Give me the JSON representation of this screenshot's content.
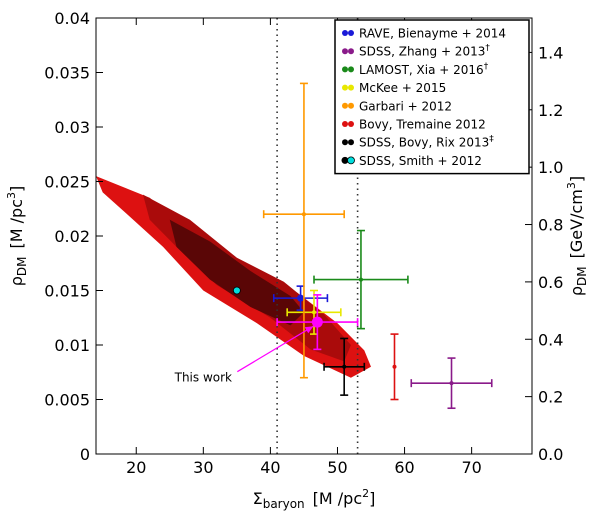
{
  "chart_data": {
    "type": "scatter",
    "title": "",
    "xlabel": {
      "main": "Σ",
      "sub": "baryon",
      "unit": "[M  /pc",
      "sup": "2",
      "close": "]"
    },
    "ylabel_left": {
      "main": "ρ",
      "sub": "DM",
      "unit": "[M  /pc",
      "sup": "3",
      "close": "]"
    },
    "ylabel_right": {
      "main": "ρ",
      "sub": "DM",
      "unit": "[GeV/cm",
      "sup": "3",
      "close": "]"
    },
    "xlim": [
      14,
      79
    ],
    "ylim": [
      0,
      0.04
    ],
    "ylim_right": [
      0,
      1.52
    ],
    "xticks": [
      20,
      30,
      40,
      50,
      60,
      70
    ],
    "yticks": [
      0,
      0.005,
      0.01,
      0.015,
      0.02,
      0.025,
      0.03,
      0.035,
      0.04
    ],
    "ytick_labels": [
      "0",
      "0.005",
      "0.01",
      "0.015",
      "0.02",
      "0.025",
      "0.03",
      "0.035",
      "0.04"
    ],
    "yticks_right": [
      0.0,
      0.2,
      0.4,
      0.6,
      0.8,
      1.0,
      1.2,
      1.4
    ],
    "ytick_right_labels": [
      "0.0",
      "0.2",
      "0.4",
      "0.6",
      "0.8",
      "1.0",
      "1.2",
      "1.4"
    ],
    "vlines": [
      41,
      53
    ],
    "annotation": {
      "text": "This work",
      "x": 47,
      "y": 0.012,
      "text_x": 30,
      "text_y": 0.007
    },
    "band": {
      "name": "Bovy, Tremaine 2012",
      "color_outer": "#dd1111",
      "color_mid": "#aa0b0b",
      "color_inner": "#5a0606",
      "outer": [
        [
          14,
          0.0255
        ],
        [
          22,
          0.0235
        ],
        [
          30,
          0.0195
        ],
        [
          38,
          0.0165
        ],
        [
          44,
          0.0148
        ],
        [
          50,
          0.012
        ],
        [
          54,
          0.0095
        ],
        [
          55,
          0.008
        ],
        [
          52,
          0.007
        ],
        [
          45,
          0.009
        ],
        [
          38,
          0.012
        ],
        [
          30,
          0.015
        ],
        [
          24,
          0.019
        ],
        [
          19,
          0.0218
        ],
        [
          15,
          0.024
        ]
      ],
      "mid": [
        [
          21,
          0.0238
        ],
        [
          28,
          0.0215
        ],
        [
          35,
          0.018
        ],
        [
          42,
          0.0158
        ],
        [
          48,
          0.0128
        ],
        [
          52,
          0.01
        ],
        [
          51,
          0.0085
        ],
        [
          46,
          0.0096
        ],
        [
          40,
          0.0125
        ],
        [
          32,
          0.0155
        ],
        [
          26,
          0.019
        ],
        [
          22,
          0.0215
        ]
      ],
      "inner": [
        [
          25,
          0.0215
        ],
        [
          31,
          0.0195
        ],
        [
          37,
          0.0168
        ],
        [
          43,
          0.0145
        ],
        [
          45,
          0.013
        ],
        [
          43,
          0.0118
        ],
        [
          37,
          0.0135
        ],
        [
          31,
          0.016
        ],
        [
          26,
          0.019
        ]
      ]
    },
    "series": [
      {
        "name": "RAVE, Bienayme + 2014",
        "color": "#1a1ad8",
        "x": 44.5,
        "y": 0.0143,
        "xerr": [
          4,
          4
        ],
        "yerr": [
          0.0011,
          0.0011
        ],
        "marker": "circle"
      },
      {
        "name": "SDSS, Zhang + 2013",
        "sup": "†",
        "color": "#8a1a8a",
        "x": 67,
        "y": 0.0065,
        "xerr": [
          6,
          6
        ],
        "yerr": [
          0.0023,
          0.0023
        ],
        "marker": "dot"
      },
      {
        "name": "LAMOST, Xia + 2016",
        "sup": "†",
        "color": "#1a8a1a",
        "x": 53.5,
        "y": 0.016,
        "xerr": [
          7,
          7
        ],
        "yerr": [
          0.0045,
          0.0045
        ],
        "marker": "dot"
      },
      {
        "name": "McKee + 2015",
        "color": "#e8e800",
        "x": 46.5,
        "y": 0.013,
        "xerr": [
          4,
          4
        ],
        "yerr": [
          0.002,
          0.002
        ],
        "marker": "dot"
      },
      {
        "name": "Garbari + 2012",
        "color": "#ff9900",
        "x": 45,
        "y": 0.022,
        "xerr": [
          6,
          6
        ],
        "yerr": [
          0.015,
          0.012
        ],
        "marker": "dot"
      },
      {
        "name": "SDSS, Bovy, Rix 2013",
        "sup": "‡",
        "color": "#000000",
        "x": 51,
        "y": 0.008,
        "xerr": [
          3,
          3
        ],
        "yerr": [
          0.0026,
          0.0026
        ],
        "marker": "dot"
      },
      {
        "name": "SDSS, Smith + 2012",
        "color": "#00dddd",
        "edge": "#000000",
        "x": 35,
        "y": 0.015,
        "xerr": [
          0,
          0
        ],
        "yerr": [
          0,
          0
        ],
        "marker": "circle"
      },
      {
        "name": "This work",
        "color": "#ff00ff",
        "x": 47,
        "y": 0.0121,
        "xerr": [
          6,
          6
        ],
        "yerr": [
          0.0025,
          0.0025
        ],
        "marker": "bigcircle"
      }
    ],
    "extra_points": [
      {
        "color": "#dd1111",
        "x": 58.5,
        "y": 0.008,
        "xerr": [
          0,
          0
        ],
        "yerr": [
          0.003,
          0.003
        ]
      }
    ],
    "legend": {
      "placement": "top-right",
      "entries": [
        {
          "label": "RAVE, Bienayme + 2014",
          "sup": "",
          "color": "#1a1ad8"
        },
        {
          "label": "SDSS, Zhang + 2013",
          "sup": "†",
          "color": "#8a1a8a"
        },
        {
          "label": "LAMOST, Xia + 2016",
          "sup": "†",
          "color": "#1a8a1a"
        },
        {
          "label": "McKee + 2015",
          "sup": "",
          "color": "#e8e800"
        },
        {
          "label": "Garbari + 2012",
          "sup": "",
          "color": "#ff9900"
        },
        {
          "label": "Bovy, Tremaine 2012",
          "sup": "",
          "color": "#dd1111"
        },
        {
          "label": "SDSS, Bovy, Rix 2013",
          "sup": "‡",
          "color": "#000000"
        },
        {
          "label": "SDSS, Smith + 2012",
          "sup": "",
          "color": "#00dddd"
        }
      ]
    }
  }
}
